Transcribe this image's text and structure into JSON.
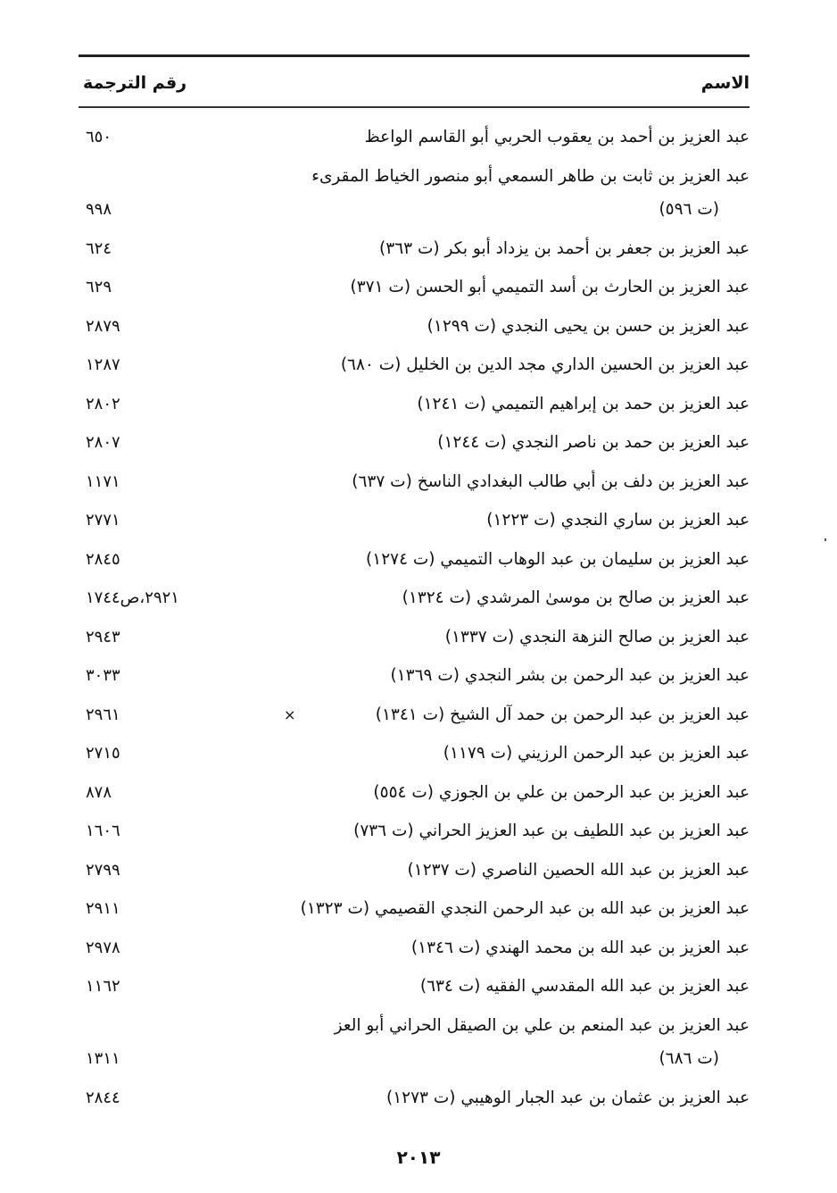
{
  "header": {
    "name_col": "الاسم",
    "number_col": "رقم الترجمة"
  },
  "entries": [
    {
      "name": "عبد العزيز بن أحمد بن يعقوب الحربي أبو القاسم الواعظ",
      "number": "٦٥٠"
    },
    {
      "name": "عبد العزيز بن ثابت بن طاهر السمعي أبو منصور الخياط المقرىء",
      "name_cont": "(ت ٥٩٦)",
      "number": "٩٩٨"
    },
    {
      "name": "عبد العزيز بن جعفر بن أحمد بن يزداد أبو بكر (ت ٣٦٣)",
      "number": "٦٢٤"
    },
    {
      "name": "عبد العزيز بن الحارث بن أسد التميمي أبو الحسن (ت ٣٧١)",
      "number": "٦٢٩"
    },
    {
      "name": "عبد العزيز بن حسن بن يحيى النجدي (ت ١٢٩٩)",
      "number": "٢٨٧٩"
    },
    {
      "name": "عبد العزيز بن الحسين الداري مجد الدين بن الخليل (ت ٦٨٠)",
      "number": "١٢٨٧"
    },
    {
      "name": "عبد العزيز بن حمد بن إبراهيم التميمي (ت ١٢٤١)",
      "number": "٢٨٠٢"
    },
    {
      "name": "عبد العزيز بن حمد بن ناصر النجدي (ت ١٢٤٤)",
      "number": "٢٨٠٧"
    },
    {
      "name": "عبد العزيز بن دلف بن أبي طالب البغدادي الناسخ (ت ٦٣٧)",
      "number": "١١٧١"
    },
    {
      "name": "عبد العزيز بن ساري النجدي (ت ١٢٢٣)",
      "number": "٢٧٧١"
    },
    {
      "name": "عبد العزيز بن سليمان بن عبد الوهاب التميمي (ت ١٢٧٤)",
      "number": "٢٨٤٥"
    },
    {
      "name": "عبد العزيز بن صالح بن موسىٰ المرشدي (ت ١٣٢٤)",
      "number": "٢٩٢١،ص١٧٤٤"
    },
    {
      "name": "عبد العزيز بن صالح النزهة النجدي (ت ١٣٣٧)",
      "number": "٢٩٤٣"
    },
    {
      "name": "عبد العزيز بن عبد الرحمن بن بشر النجدي (ت ١٣٦٩)",
      "number": "٣٠٣٣"
    },
    {
      "name": "عبد العزيز بن عبد الرحمن بن حمد آل الشيخ (ت ١٣٤١)",
      "number": "٢٩٦١",
      "mark": "×"
    },
    {
      "name": "عبد العزيز بن عبد الرحمن الرزيني (ت ١١٧٩)",
      "number": "٢٧١٥"
    },
    {
      "name": "عبد العزيز بن عبد الرحمن بن علي بن الجوزي (ت ٥٥٤)",
      "number": "٨٧٨"
    },
    {
      "name": "عبد العزيز بن عبد اللطيف بن عبد العزيز الحراني (ت ٧٣٦)",
      "number": "١٦٠٦"
    },
    {
      "name": "عبد العزيز بن عبد الله الحصين الناصري (ت ١٢٣٧)",
      "number": "٢٧٩٩"
    },
    {
      "name": "عبد العزيز بن عبد الله بن عبد الرحمن النجدي القصيمي (ت ١٣٢٣)",
      "number": "٢٩١١"
    },
    {
      "name": "عبد العزيز بن عبد الله بن محمد الهندي (ت ١٣٤٦)",
      "number": "٢٩٧٨"
    },
    {
      "name": "عبد العزيز بن عبد الله المقدسي الفقيه (ت ٦٣٤)",
      "number": "١١٦٢"
    },
    {
      "name": "عبد العزيز بن عبد المنعم بن علي بن الصيقل الحراني أبو العز",
      "name_cont": "(ت ٦٨٦)",
      "number": "١٣١١"
    },
    {
      "name": "عبد العزيز بن عثمان بن عبد الجبار الوهيبي (ت ١٢٧٣)",
      "number": "٢٨٤٤"
    }
  ],
  "page_number": "٢٠١٣"
}
